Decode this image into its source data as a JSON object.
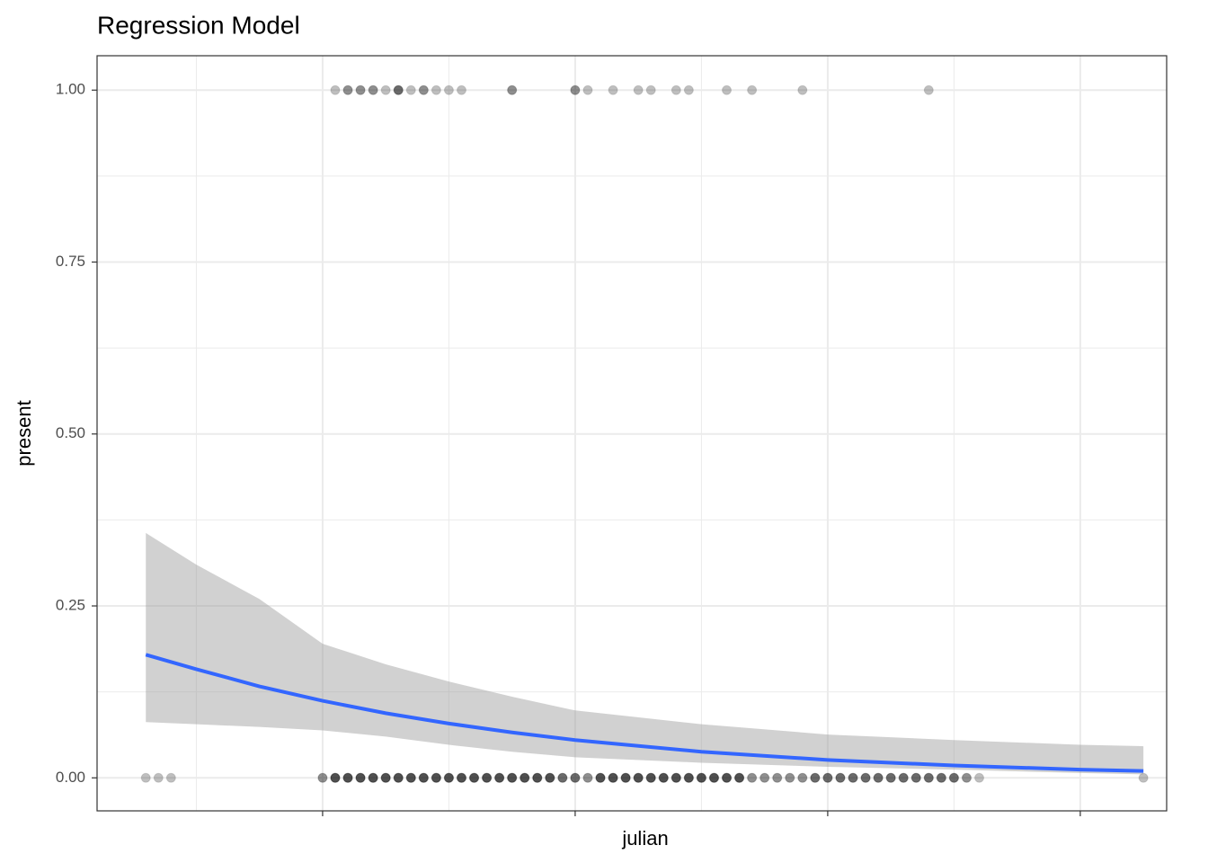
{
  "chart_data": {
    "type": "scatter",
    "title": "Regression Model",
    "xlabel": "julian",
    "ylabel": "present",
    "xlim": [
      10.7,
      434.2
    ],
    "ylim": [
      -0.048,
      1.05
    ],
    "xticks": [
      100,
      200,
      300,
      400
    ],
    "yticks": [
      {
        "value": 0,
        "label": "0.00"
      },
      {
        "value": 0.25,
        "label": "0.25"
      },
      {
        "value": 0.5,
        "label": "0.50"
      },
      {
        "value": 0.75,
        "label": "0.75"
      },
      {
        "value": 1,
        "label": "1.00"
      }
    ],
    "grid": true,
    "points": {
      "color": "#000000",
      "x": [
        105,
        110,
        115,
        120,
        125,
        130,
        135,
        140,
        145,
        150,
        155,
        175,
        200,
        205,
        215,
        225,
        230,
        240,
        245,
        260,
        270,
        290,
        340,
        30,
        35,
        40,
        100,
        105,
        110,
        115,
        120,
        125,
        130,
        135,
        140,
        145,
        150,
        155,
        160,
        165,
        170,
        175,
        180,
        185,
        190,
        195,
        200,
        205,
        210,
        215,
        220,
        225,
        230,
        235,
        240,
        245,
        250,
        255,
        260,
        265,
        270,
        275,
        280,
        285,
        290,
        295,
        300,
        305,
        310,
        315,
        320,
        325,
        330,
        335,
        340,
        345,
        350,
        355,
        360,
        425
      ],
      "y": [
        1,
        1,
        1,
        1,
        1,
        1,
        1,
        1,
        1,
        1,
        1,
        1,
        1,
        1,
        1,
        1,
        1,
        1,
        1,
        1,
        1,
        1,
        1,
        0,
        0,
        0,
        0,
        0,
        0,
        0,
        0,
        0,
        0,
        0,
        0,
        0,
        0,
        0,
        0,
        0,
        0,
        0,
        0,
        0,
        0,
        0,
        0,
        0,
        0,
        0,
        0,
        0,
        0,
        0,
        0,
        0,
        0,
        0,
        0,
        0,
        0,
        0,
        0,
        0,
        0,
        0,
        0,
        0,
        0,
        0,
        0,
        0,
        0,
        0,
        0,
        0,
        0,
        0,
        0,
        0
      ],
      "n": [
        1,
        2,
        2,
        2,
        1,
        3,
        1,
        2,
        1,
        1,
        1,
        2,
        2,
        1,
        1,
        1,
        1,
        1,
        1,
        1,
        1,
        1,
        1,
        1,
        1,
        1,
        2,
        4,
        4,
        4,
        4,
        4,
        4,
        4,
        4,
        4,
        4,
        4,
        4,
        4,
        4,
        4,
        4,
        4,
        4,
        3,
        3,
        2,
        4,
        4,
        4,
        4,
        4,
        4,
        4,
        4,
        4,
        4,
        4,
        4,
        2,
        2,
        2,
        2,
        2,
        3,
        3,
        3,
        3,
        3,
        3,
        3,
        3,
        3,
        3,
        3,
        3,
        2,
        1,
        1
      ]
    },
    "fit": {
      "color": "#3366ff",
      "ribbon_color": "#999999",
      "x": [
        30,
        50,
        75,
        100,
        125,
        150,
        175,
        200,
        250,
        300,
        350,
        400,
        425
      ],
      "values": [
        0.179,
        0.158,
        0.133,
        0.112,
        0.094,
        0.079,
        0.066,
        0.055,
        0.038,
        0.026,
        0.018,
        0.012,
        0.01
      ],
      "lower": [
        0.081,
        0.078,
        0.074,
        0.069,
        0.06,
        0.048,
        0.038,
        0.03,
        0.022,
        0.016,
        0.012,
        0.007,
        0.005
      ],
      "upper": [
        0.356,
        0.31,
        0.26,
        0.195,
        0.165,
        0.14,
        0.118,
        0.098,
        0.078,
        0.063,
        0.055,
        0.048,
        0.046
      ]
    }
  }
}
